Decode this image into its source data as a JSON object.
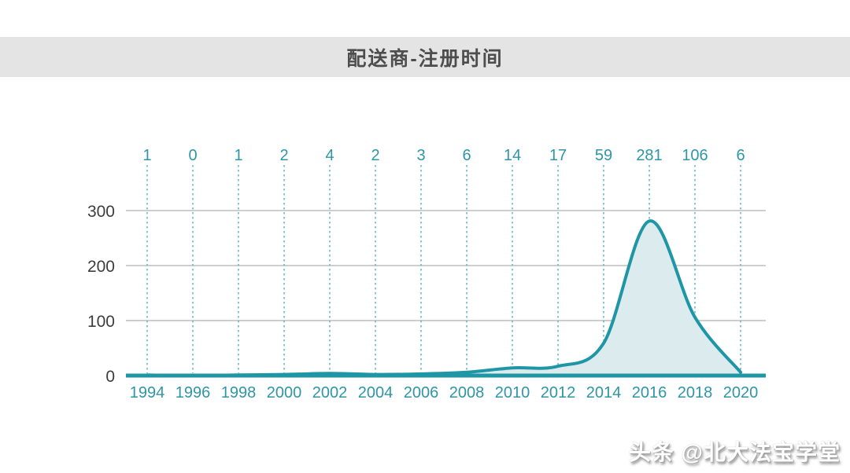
{
  "page": {
    "title": "配送商-注册时间",
    "watermark": "头条 @北大法宝学堂"
  },
  "chart_data": {
    "type": "area",
    "title": "配送商-注册时间",
    "x": [
      1994,
      1996,
      1998,
      2000,
      2002,
      2004,
      2006,
      2008,
      2010,
      2012,
      2014,
      2016,
      2018,
      2020
    ],
    "values": [
      1,
      0,
      1,
      2,
      4,
      2,
      3,
      6,
      14,
      17,
      59,
      281,
      106,
      6
    ],
    "show_value_labels": true,
    "xlabel": "",
    "ylabel": "",
    "ylim": [
      0,
      300
    ],
    "yticks": [
      0,
      100,
      200,
      300
    ],
    "smoothed": true,
    "legend": "none",
    "grid": {
      "horizontal": "solid gray lines at each y tick",
      "vertical": "dashed teal guide under each value label"
    },
    "colors": {
      "line": "#1e96a6",
      "fill": "#dcebee",
      "dashed_guide": "#4fa8b4",
      "tick_label": "#2e96a6",
      "axis_label": "#3d3d3d",
      "gridline": "#9e9e9e",
      "title_band_bg": "#e4e4e4",
      "title_text": "#4d4d4d",
      "watermark_text": "#ffffff"
    }
  }
}
